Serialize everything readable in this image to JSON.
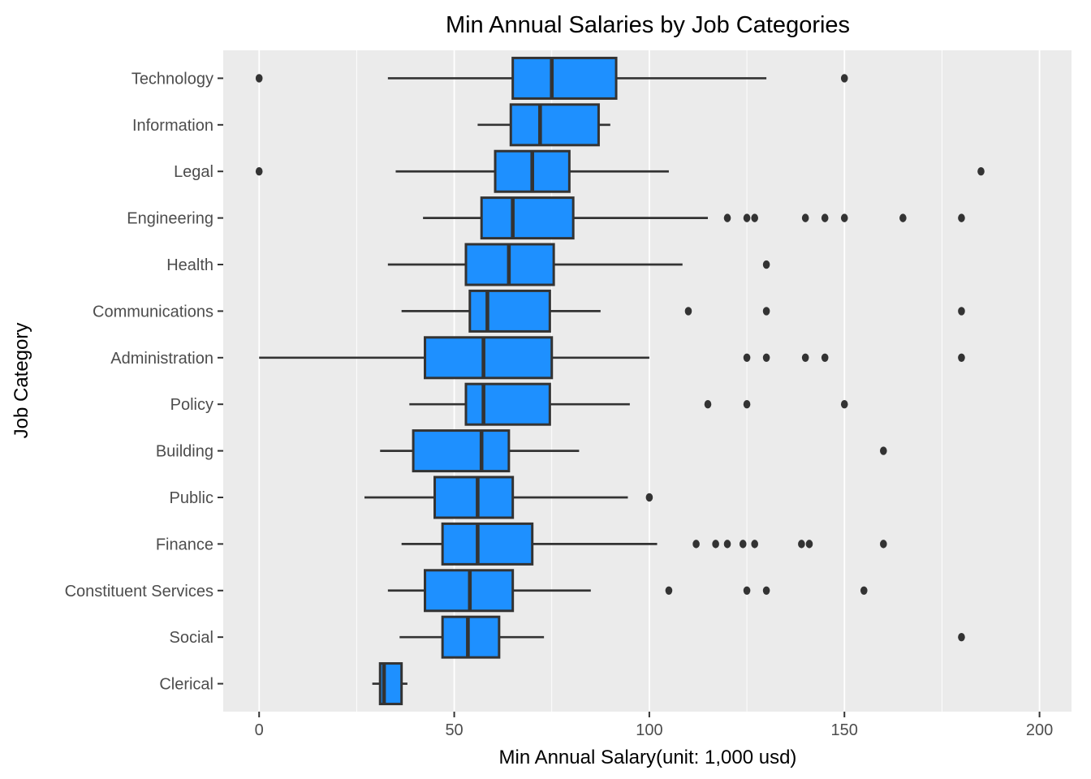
{
  "title": "Min Annual Salaries by Job Categories",
  "chart_data": {
    "type": "boxplot",
    "orientation": "horizontal",
    "title": "Min Annual Salaries by Job Categories",
    "xlabel": "Min Annual Salary(unit: 1,000 usd)",
    "ylabel": "Job Category",
    "xlim": [
      -9.2,
      208.2
    ],
    "x_major_ticks": [
      0,
      50,
      100,
      150,
      200
    ],
    "x_minor_ticks": [
      25,
      75,
      125,
      175
    ],
    "grid": true,
    "legend": "none",
    "categories_top_to_bottom": [
      "Technology",
      "Information",
      "Legal",
      "Engineering",
      "Health",
      "Communications",
      "Administration",
      "Policy",
      "Building",
      "Public",
      "Finance",
      "Constituent Services",
      "Social",
      "Clerical"
    ],
    "series": [
      {
        "category": "Technology",
        "whisker_min": 33,
        "q1": 65,
        "median": 75,
        "q3": 91.5,
        "whisker_max": 130,
        "outliers": [
          0,
          150
        ]
      },
      {
        "category": "Information",
        "whisker_min": 56,
        "q1": 64.5,
        "median": 72,
        "q3": 87,
        "whisker_max": 90,
        "outliers": []
      },
      {
        "category": "Legal",
        "whisker_min": 35,
        "q1": 60.5,
        "median": 70,
        "q3": 79.5,
        "whisker_max": 105,
        "outliers": [
          0,
          185
        ]
      },
      {
        "category": "Engineering",
        "whisker_min": 42,
        "q1": 57,
        "median": 65,
        "q3": 80.5,
        "whisker_max": 115,
        "outliers": [
          120,
          125,
          127,
          140,
          145,
          150,
          165,
          180
        ]
      },
      {
        "category": "Health",
        "whisker_min": 33,
        "q1": 53,
        "median": 64,
        "q3": 75.5,
        "whisker_max": 108.5,
        "outliers": [
          130
        ]
      },
      {
        "category": "Communications",
        "whisker_min": 36.5,
        "q1": 54,
        "median": 58.5,
        "q3": 74.5,
        "whisker_max": 87.5,
        "outliers": [
          110,
          130,
          180
        ]
      },
      {
        "category": "Administration",
        "whisker_min": 0,
        "q1": 42.5,
        "median": 57.5,
        "q3": 75,
        "whisker_max": 100,
        "outliers": [
          125,
          130,
          140,
          145,
          180
        ]
      },
      {
        "category": "Policy",
        "whisker_min": 38.5,
        "q1": 53,
        "median": 57.5,
        "q3": 74.5,
        "whisker_max": 95,
        "outliers": [
          115,
          125,
          150
        ]
      },
      {
        "category": "Building",
        "whisker_min": 31,
        "q1": 39.5,
        "median": 57,
        "q3": 64,
        "whisker_max": 82,
        "outliers": [
          160
        ]
      },
      {
        "category": "Public",
        "whisker_min": 27,
        "q1": 45,
        "median": 56,
        "q3": 65,
        "whisker_max": 94.5,
        "outliers": [
          100
        ]
      },
      {
        "category": "Finance",
        "whisker_min": 36.5,
        "q1": 47,
        "median": 56,
        "q3": 70,
        "whisker_max": 102,
        "outliers": [
          112,
          117,
          120,
          124,
          127,
          139,
          141,
          160
        ]
      },
      {
        "category": "Constituent Services",
        "whisker_min": 33,
        "q1": 42.5,
        "median": 54,
        "q3": 65,
        "whisker_max": 85,
        "outliers": [
          105,
          125,
          130,
          155
        ]
      },
      {
        "category": "Social",
        "whisker_min": 36,
        "q1": 47,
        "median": 53.5,
        "q3": 61.5,
        "whisker_max": 73,
        "outliers": [
          180
        ]
      },
      {
        "category": "Clerical",
        "whisker_min": 29,
        "q1": 31,
        "median": 32,
        "q3": 36.5,
        "whisker_max": 38,
        "outliers": []
      }
    ],
    "colors": {
      "box_fill": "#1E90FF",
      "box_stroke": "#333333",
      "outlier": "#333333",
      "panel_background": "#EBEBEB",
      "gridline": "#FFFFFF",
      "axis_text": "#4D4D4D",
      "title_text": "#000000",
      "figure_background": "#FFFFFF"
    }
  }
}
